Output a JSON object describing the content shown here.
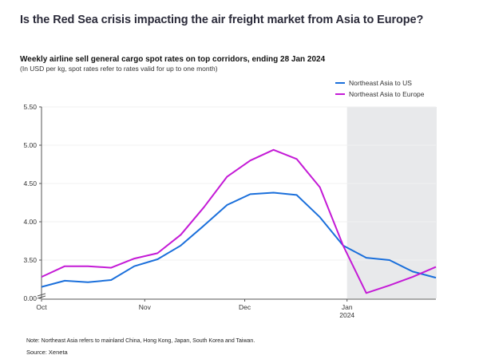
{
  "chart_data": {
    "type": "line",
    "title": "Is the Red Sea crisis impacting the air freight market from Asia to Europe?",
    "subtitle": "Weekly airline sell general cargo spot rates on top corridors, ending 28 Jan 2024",
    "note": "(In USD per kg, spot rates refer to rates valid for up to one month)",
    "xlabel": "",
    "ylabel": "",
    "y_ticks": [
      "5.50",
      "5.00",
      "4.50",
      "4.00",
      "3.50",
      "0.00"
    ],
    "y_tick_values": [
      5.5,
      5.0,
      4.5,
      4.0,
      3.5,
      3.0
    ],
    "y_axis_break": true,
    "ylim": [
      3.0,
      5.5
    ],
    "x_ticks": [
      {
        "label": "Oct",
        "sublabel": "",
        "week_index": 0
      },
      {
        "label": "Nov",
        "sublabel": "",
        "week_index": 4.45
      },
      {
        "label": "Dec",
        "sublabel": "",
        "week_index": 8.76
      },
      {
        "label": "Jan",
        "sublabel": "2024",
        "week_index": 13.17
      }
    ],
    "x_count": 18,
    "highlight_region": {
      "from_week_index": 13.17,
      "to_week_index": 17,
      "color": "#e8e9eb"
    },
    "grid": true,
    "legend_position": "top-right",
    "series": [
      {
        "name": "Northeast Asia to US",
        "color": "#1a6fdb",
        "values": [
          3.15,
          3.23,
          3.21,
          3.24,
          3.42,
          3.51,
          3.69,
          3.95,
          4.22,
          4.36,
          4.38,
          4.35,
          4.06,
          3.69,
          3.53,
          3.5,
          3.35,
          3.27
        ]
      },
      {
        "name": "Northeast Asia to Europe",
        "color": "#c41ad6",
        "values": [
          3.28,
          3.42,
          3.42,
          3.4,
          3.52,
          3.59,
          3.83,
          4.19,
          4.59,
          4.8,
          4.94,
          4.82,
          4.45,
          3.69,
          3.07,
          3.17,
          3.28,
          3.41
        ]
      }
    ]
  },
  "footer": {
    "note": "Note: Northeast Asia refers to mainland China, Hong Kong, Japan, South Korea and Taiwan.",
    "source": "Source: Xeneta"
  }
}
